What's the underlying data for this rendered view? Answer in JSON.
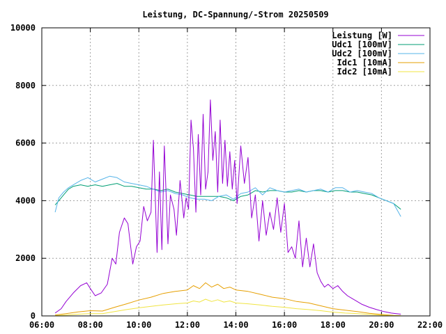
{
  "chart_data": {
    "type": "line",
    "title": "Leistung, DC-Spannung/-Strom 20250509",
    "xlabel": "",
    "ylabel": "",
    "x_unit": "hours",
    "xlim": [
      6,
      22
    ],
    "ylim": [
      0,
      10000
    ],
    "x_ticks": [
      6,
      8,
      10,
      12,
      14,
      16,
      18,
      20,
      22
    ],
    "x_tick_labels": [
      "06:00",
      "08:00",
      "10:00",
      "12:00",
      "14:00",
      "16:00",
      "18:00",
      "20:00",
      "22:00"
    ],
    "y_ticks": [
      0,
      2000,
      4000,
      6000,
      8000,
      10000
    ],
    "y_tick_labels": [
      "0",
      "2000",
      "4000",
      "6000",
      "8000",
      "10000"
    ],
    "grid": true,
    "legend_position": "top-right",
    "series": [
      {
        "name": "Leistung [W]",
        "color": "#9400d3",
        "x": [
          6.55,
          6.8,
          7.0,
          7.3,
          7.6,
          7.85,
          8.0,
          8.2,
          8.45,
          8.7,
          8.9,
          9.05,
          9.2,
          9.4,
          9.55,
          9.75,
          9.9,
          10.05,
          10.2,
          10.35,
          10.5,
          10.6,
          10.75,
          10.85,
          10.95,
          11.05,
          11.2,
          11.3,
          11.45,
          11.55,
          11.7,
          11.85,
          11.95,
          12.05,
          12.15,
          12.25,
          12.35,
          12.45,
          12.55,
          12.65,
          12.75,
          12.85,
          12.95,
          13.05,
          13.15,
          13.25,
          13.35,
          13.45,
          13.55,
          13.65,
          13.75,
          13.85,
          13.95,
          14.05,
          14.2,
          14.35,
          14.5,
          14.65,
          14.8,
          14.95,
          15.1,
          15.25,
          15.4,
          15.55,
          15.7,
          15.85,
          16.0,
          16.15,
          16.3,
          16.45,
          16.6,
          16.75,
          16.9,
          17.05,
          17.2,
          17.35,
          17.5,
          17.65,
          17.8,
          18.0,
          18.2,
          18.4,
          18.6,
          18.8,
          19.0,
          19.2,
          19.5,
          19.8,
          20.1,
          20.4,
          20.8
        ],
        "values": [
          100,
          250,
          500,
          800,
          1050,
          1150,
          950,
          700,
          800,
          1100,
          2000,
          1800,
          2900,
          3400,
          3200,
          1800,
          2400,
          2600,
          3800,
          3300,
          3600,
          6100,
          2200,
          5000,
          2300,
          5900,
          2500,
          4200,
          3700,
          2800,
          4700,
          3400,
          4100,
          3700,
          6800,
          5800,
          3600,
          6300,
          4200,
          7000,
          4400,
          5000,
          7500,
          5400,
          6400,
          4300,
          6800,
          4600,
          6100,
          4500,
          5700,
          4400,
          5400,
          3900,
          5900,
          4600,
          5500,
          3400,
          4200,
          2600,
          4000,
          2800,
          3600,
          3000,
          4100,
          2900,
          3900,
          2200,
          2400,
          2000,
          3300,
          1700,
          2700,
          1700,
          2500,
          1500,
          1200,
          1000,
          1100,
          950,
          1050,
          850,
          700,
          600,
          500,
          400,
          300,
          220,
          150,
          100,
          60
        ]
      },
      {
        "name": "Udc1 [100mV]",
        "color": "#009e73",
        "x": [
          6.55,
          6.7,
          6.9,
          7.1,
          7.3,
          7.6,
          7.9,
          8.2,
          8.5,
          8.8,
          9.1,
          9.4,
          9.7,
          10.0,
          10.3,
          10.6,
          10.9,
          11.2,
          11.5,
          11.8,
          12.1,
          12.4,
          12.7,
          13.0,
          13.3,
          13.6,
          13.9,
          14.2,
          14.5,
          14.8,
          15.1,
          15.4,
          15.7,
          16.0,
          16.3,
          16.6,
          16.9,
          17.2,
          17.5,
          17.8,
          18.1,
          18.4,
          18.7,
          19.0,
          19.3,
          19.6,
          19.9,
          20.2,
          20.5,
          20.8
        ],
        "values": [
          3850,
          4000,
          4200,
          4400,
          4500,
          4550,
          4500,
          4550,
          4500,
          4550,
          4600,
          4500,
          4500,
          4450,
          4400,
          4400,
          4350,
          4400,
          4300,
          4250,
          4200,
          4150,
          4150,
          4150,
          4150,
          4100,
          4000,
          4150,
          4200,
          4350,
          4300,
          4350,
          4350,
          4300,
          4300,
          4350,
          4300,
          4350,
          4350,
          4300,
          4350,
          4350,
          4300,
          4300,
          4250,
          4200,
          4100,
          4000,
          3900,
          3700
        ]
      },
      {
        "name": "Udc2 [100mV]",
        "color": "#56b4e9",
        "x": [
          6.55,
          6.7,
          6.9,
          7.1,
          7.3,
          7.6,
          7.9,
          8.2,
          8.5,
          8.8,
          9.1,
          9.4,
          9.7,
          10.0,
          10.3,
          10.6,
          10.9,
          11.2,
          11.5,
          11.8,
          12.1,
          12.4,
          12.7,
          13.0,
          13.3,
          13.6,
          13.9,
          14.2,
          14.5,
          14.8,
          15.1,
          15.4,
          15.7,
          16.0,
          16.3,
          16.6,
          16.9,
          17.2,
          17.5,
          17.8,
          18.1,
          18.4,
          18.7,
          19.0,
          19.3,
          19.6,
          19.9,
          20.2,
          20.5,
          20.8
        ],
        "values": [
          3600,
          4100,
          4300,
          4450,
          4550,
          4700,
          4800,
          4650,
          4750,
          4850,
          4800,
          4650,
          4600,
          4550,
          4500,
          4400,
          4300,
          4350,
          4250,
          4200,
          4100,
          4050,
          4050,
          4000,
          4150,
          4200,
          4050,
          4250,
          4300,
          4450,
          4200,
          4450,
          4350,
          4300,
          4350,
          4400,
          4300,
          4350,
          4400,
          4300,
          4450,
          4450,
          4300,
          4350,
          4300,
          4250,
          4100,
          4000,
          3900,
          3450
        ]
      },
      {
        "name": "Idc1 [10mA]",
        "color": "#e69f00",
        "x": [
          6.55,
          7.0,
          7.5,
          8.0,
          8.5,
          9.0,
          9.5,
          10.0,
          10.5,
          11.0,
          11.5,
          12.0,
          12.25,
          12.5,
          12.75,
          13.0,
          13.25,
          13.5,
          13.75,
          14.0,
          14.5,
          15.0,
          15.5,
          16.0,
          16.5,
          17.0,
          17.5,
          18.0,
          18.5,
          19.0,
          19.5,
          20.0,
          20.5,
          20.8
        ],
        "values": [
          30,
          80,
          140,
          180,
          170,
          300,
          420,
          550,
          650,
          780,
          850,
          900,
          1050,
          950,
          1150,
          1000,
          1100,
          950,
          1000,
          900,
          850,
          750,
          650,
          600,
          500,
          450,
          350,
          250,
          200,
          150,
          90,
          50,
          20,
          10
        ]
      },
      {
        "name": "Idc2 [10mA]",
        "color": "#f0e442",
        "x": [
          6.55,
          7.0,
          7.5,
          8.0,
          8.5,
          9.0,
          9.5,
          10.0,
          10.5,
          11.0,
          11.5,
          12.0,
          12.25,
          12.5,
          12.75,
          13.0,
          13.25,
          13.5,
          13.75,
          14.0,
          14.5,
          15.0,
          15.5,
          16.0,
          16.5,
          17.0,
          17.5,
          18.0,
          18.5,
          19.0,
          19.5,
          20.0,
          20.5,
          20.8
        ],
        "values": [
          10,
          30,
          60,
          80,
          80,
          150,
          220,
          280,
          330,
          380,
          420,
          450,
          520,
          480,
          580,
          500,
          560,
          480,
          520,
          450,
          420,
          380,
          330,
          300,
          250,
          220,
          180,
          130,
          100,
          80,
          50,
          25,
          10,
          5
        ]
      }
    ]
  }
}
